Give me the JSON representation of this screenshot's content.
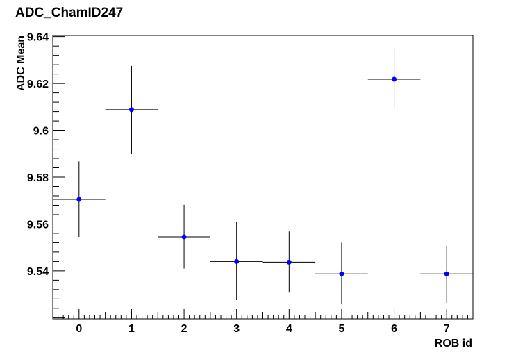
{
  "chart_data": {
    "type": "scatter",
    "title": "ADC_ChamID247",
    "xlabel": "ROB id",
    "ylabel": "ADC Mean",
    "xlim": [
      -0.5,
      7.5
    ],
    "ylim": [
      9.5195,
      9.6405
    ],
    "x_ticks": [
      "0",
      "1",
      "2",
      "3",
      "4",
      "5",
      "6",
      "7"
    ],
    "y_ticks": [
      "9.54",
      "9.56",
      "9.58",
      "9.6",
      "9.62",
      "9.64"
    ],
    "grid": false,
    "marker_color": "#0000ff",
    "points": [
      {
        "x": 0,
        "y": 9.5705,
        "yerr_low": 0.016,
        "yerr_high": 0.0162,
        "xerr": 0.5
      },
      {
        "x": 1,
        "y": 9.6088,
        "yerr_low": 0.0188,
        "yerr_high": 0.0187,
        "xerr": 0.5
      },
      {
        "x": 2,
        "y": 9.5545,
        "yerr_low": 0.0135,
        "yerr_high": 0.0137,
        "xerr": 0.5
      },
      {
        "x": 3,
        "y": 9.544,
        "yerr_low": 0.0165,
        "yerr_high": 0.017,
        "xerr": 0.5
      },
      {
        "x": 4,
        "y": 9.5437,
        "yerr_low": 0.013,
        "yerr_high": 0.0131,
        "xerr": 0.5
      },
      {
        "x": 5,
        "y": 9.5387,
        "yerr_low": 0.013,
        "yerr_high": 0.0133,
        "xerr": 0.5
      },
      {
        "x": 6,
        "y": 9.6218,
        "yerr_low": 0.0127,
        "yerr_high": 0.013,
        "xerr": 0.5
      },
      {
        "x": 7,
        "y": 9.5387,
        "yerr_low": 0.0124,
        "yerr_high": 0.012,
        "xerr": 0.5
      }
    ]
  }
}
